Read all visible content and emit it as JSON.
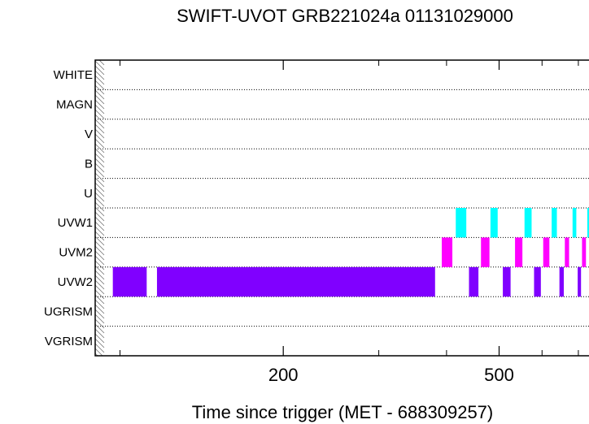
{
  "chart_data": {
    "type": "bar",
    "title": "SWIFT-UVOT GRB221024a 01131029000",
    "xlabel": "Time since trigger (MET - 688309257)",
    "ylabel": "",
    "x_scale": "log",
    "xlim": [
      90,
      740
    ],
    "x_ticks": [
      {
        "value": 200,
        "label": "200"
      },
      {
        "value": 500,
        "label": "500"
      }
    ],
    "x_minor_ticks": [
      100,
      300,
      400,
      600,
      700
    ],
    "grid": "horizontal-dotted",
    "categories": [
      "WHITE",
      "MAGN",
      "V",
      "B",
      "U",
      "UVW1",
      "UVM2",
      "UVW2",
      "UGRISM",
      "VGRISM"
    ],
    "colors": {
      "UVW1": "#00ffff",
      "UVM2": "#ff00ff",
      "UVW2": "#8000ff"
    },
    "series": [
      {
        "filter": "UVW1",
        "intervals": [
          [
            416,
            435
          ],
          [
            482,
            497
          ],
          [
            557,
            574
          ],
          [
            625,
            639
          ],
          [
            683,
            694
          ],
          [
            727,
            740
          ]
        ]
      },
      {
        "filter": "UVM2",
        "intervals": [
          [
            392,
            410
          ],
          [
            463,
            480
          ],
          [
            535,
            552
          ],
          [
            603,
            619
          ],
          [
            661,
            673
          ],
          [
            711,
            723
          ],
          [
            738,
            740
          ]
        ]
      },
      {
        "filter": "UVW2",
        "intervals": [
          [
            97,
            112
          ],
          [
            117,
            381
          ],
          [
            440,
            458
          ],
          [
            508,
            525
          ],
          [
            580,
            597
          ],
          [
            646,
            658
          ],
          [
            698,
            708
          ]
        ]
      }
    ]
  }
}
